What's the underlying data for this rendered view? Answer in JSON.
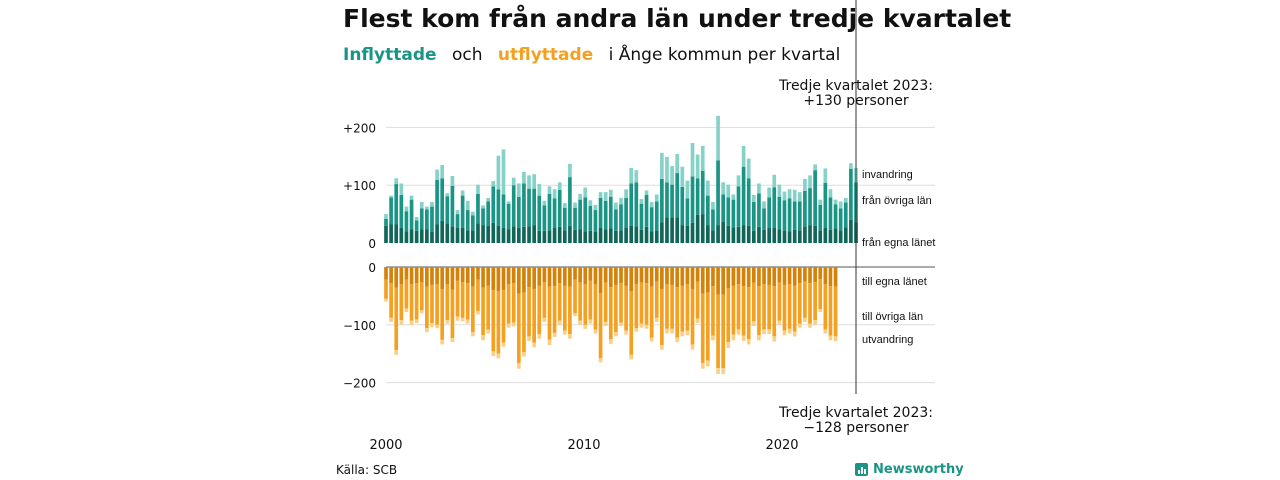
{
  "title": "Flest kom från andra län under tredje kvartalet",
  "subtitle": {
    "in_label": "Inflyttade",
    "and_label": "och",
    "out_label": "utflyttade",
    "rest": "i Ånge kommun per kvartal"
  },
  "colors": {
    "in_dark": "#11665a",
    "in_mid": "#1a9585",
    "in_light": "#86d2c8",
    "out_dark": "#d4820a",
    "out_mid": "#f4a021",
    "out_light": "#fbcf85",
    "accent_text_in": "#1a9585",
    "accent_text_out": "#f4a021"
  },
  "annotations": {
    "top_line1": "Tredje kvartalet 2023:",
    "top_line2": "+130 personer",
    "bottom_line1": "Tredje kvartalet 2023:",
    "bottom_line2": "−128 personer"
  },
  "source": "Källa: SCB",
  "brand": "Newsworthy",
  "brand_icon": "bar-chart-icon",
  "chart_data": {
    "type": "bar",
    "stacked": true,
    "x_start": "2000 Q1",
    "x_end": "2023 Q3",
    "x_tick_labels": [
      "2000",
      "2010",
      "2020"
    ],
    "y_tick_labels_top": [
      "+200",
      "+100",
      "0"
    ],
    "y_tick_labels_bottom": [
      "0",
      "−100",
      "−200"
    ],
    "ylim_top": [
      0,
      220
    ],
    "ylim_bottom": [
      -220,
      0
    ],
    "grid": true,
    "in_series_names": [
      "från egna länet",
      "från övriga län",
      "invandring"
    ],
    "out_series_names": [
      "till egna länet",
      "till övriga län",
      "utvandring"
    ],
    "inflow_total": [
      50,
      82,
      112,
      103,
      63,
      82,
      45,
      71,
      63,
      71,
      127,
      135,
      86,
      116,
      57,
      91,
      73,
      54,
      101,
      65,
      78,
      107,
      151,
      162,
      72,
      113,
      103,
      123,
      117,
      119,
      102,
      73,
      98,
      93,
      105,
      69,
      137,
      70,
      85,
      96,
      74,
      66,
      88,
      88,
      92,
      70,
      78,
      93,
      130,
      126,
      76,
      91,
      71,
      84,
      156,
      149,
      133,
      154,
      132,
      108,
      173,
      153,
      168,
      108,
      71,
      220,
      105,
      101,
      84,
      117,
      168,
      146,
      83,
      103,
      72,
      96,
      118,
      101,
      89,
      93,
      92,
      88,
      111,
      117,
      136,
      75,
      129,
      93,
      75,
      72,
      78,
      138,
      130
    ],
    "inflow_egna": [
      30,
      32,
      32,
      26,
      20,
      24,
      21,
      24,
      24,
      19,
      32,
      38,
      34,
      29,
      26,
      26,
      22,
      22,
      34,
      31,
      30,
      35,
      30,
      26,
      24,
      29,
      26,
      28,
      29,
      31,
      21,
      21,
      22,
      26,
      28,
      22,
      30,
      23,
      24,
      20,
      21,
      19,
      26,
      24,
      25,
      21,
      22,
      26,
      30,
      29,
      23,
      28,
      20,
      22,
      36,
      44,
      44,
      44,
      31,
      30,
      35,
      49,
      50,
      31,
      22,
      31,
      37,
      30,
      27,
      28,
      31,
      30,
      21,
      28,
      23,
      26,
      26,
      24,
      22,
      20,
      23,
      22,
      29,
      31,
      30,
      22,
      26,
      23,
      25,
      22,
      27,
      40,
      36
    ],
    "inflow_ovriga": [
      12,
      47,
      70,
      57,
      35,
      51,
      18,
      36,
      34,
      44,
      77,
      74,
      47,
      70,
      24,
      56,
      35,
      26,
      51,
      29,
      42,
      63,
      63,
      58,
      44,
      71,
      54,
      75,
      65,
      63,
      61,
      44,
      63,
      51,
      64,
      39,
      84,
      38,
      51,
      59,
      43,
      38,
      52,
      49,
      55,
      37,
      45,
      52,
      73,
      76,
      45,
      55,
      42,
      50,
      75,
      61,
      57,
      77,
      66,
      47,
      80,
      63,
      75,
      51,
      36,
      112,
      47,
      49,
      48,
      70,
      101,
      82,
      50,
      58,
      37,
      53,
      70,
      56,
      52,
      57,
      49,
      50,
      61,
      64,
      96,
      44,
      78,
      56,
      42,
      38,
      43,
      88,
      69
    ],
    "outflow_total": [
      -60,
      -95,
      -152,
      -100,
      -78,
      -100,
      -97,
      -80,
      -113,
      -104,
      -106,
      -134,
      -98,
      -130,
      -93,
      -94,
      -98,
      -120,
      -82,
      -127,
      -115,
      -154,
      -158,
      -138,
      -105,
      -103,
      -176,
      -155,
      -128,
      -139,
      -124,
      -95,
      -135,
      -121,
      -100,
      -117,
      -124,
      -85,
      -100,
      -107,
      -98,
      -115,
      -165,
      -102,
      -133,
      -120,
      -102,
      -117,
      -160,
      -112,
      -105,
      -107,
      -129,
      -95,
      -143,
      -115,
      -115,
      -130,
      -120,
      -118,
      -143,
      -97,
      -176,
      -172,
      -127,
      -185,
      -185,
      -140,
      -127,
      -117,
      -128,
      -134,
      -102,
      -127,
      -116,
      -116,
      -129,
      -100,
      -118,
      -115,
      -120,
      -105,
      -95,
      -105,
      -100,
      -78,
      -115,
      -127,
      -128
    ],
    "outflow_egna": [
      -22,
      -28,
      -36,
      -30,
      -22,
      -30,
      -28,
      -26,
      -34,
      -31,
      -30,
      -38,
      -30,
      -39,
      -24,
      -26,
      -28,
      -34,
      -22,
      -36,
      -32,
      -40,
      -42,
      -40,
      -30,
      -28,
      -46,
      -44,
      -35,
      -38,
      -32,
      -26,
      -34,
      -33,
      -28,
      -32,
      -34,
      -22,
      -26,
      -30,
      -24,
      -30,
      -45,
      -27,
      -35,
      -31,
      -28,
      -32,
      -42,
      -30,
      -27,
      -28,
      -34,
      -25,
      -38,
      -30,
      -31,
      -35,
      -32,
      -30,
      -38,
      -25,
      -46,
      -44,
      -33,
      -48,
      -48,
      -37,
      -32,
      -30,
      -33,
      -35,
      -27,
      -33,
      -30,
      -31,
      -33,
      -27,
      -31,
      -30,
      -32,
      -28,
      -25,
      -28,
      -26,
      -21,
      -30,
      -33,
      -34
    ],
    "outflow_ovriga": [
      -33,
      -60,
      -108,
      -62,
      -50,
      -63,
      -63,
      -49,
      -72,
      -66,
      -70,
      -88,
      -62,
      -84,
      -62,
      -62,
      -63,
      -79,
      -54,
      -82,
      -76,
      -106,
      -108,
      -91,
      -68,
      -68,
      -120,
      -103,
      -85,
      -93,
      -84,
      -62,
      -92,
      -81,
      -65,
      -78,
      -82,
      -58,
      -67,
      -70,
      -67,
      -78,
      -113,
      -68,
      -90,
      -82,
      -68,
      -78,
      -110,
      -76,
      -71,
      -72,
      -88,
      -63,
      -97,
      -77,
      -76,
      -87,
      -80,
      -80,
      -96,
      -64,
      -120,
      -118,
      -86,
      -127,
      -127,
      -93,
      -85,
      -78,
      -86,
      -90,
      -67,
      -85,
      -78,
      -77,
      -87,
      -66,
      -79,
      -77,
      -80,
      -70,
      -63,
      -70,
      -66,
      -52,
      -78,
      -86,
      -86
    ]
  }
}
